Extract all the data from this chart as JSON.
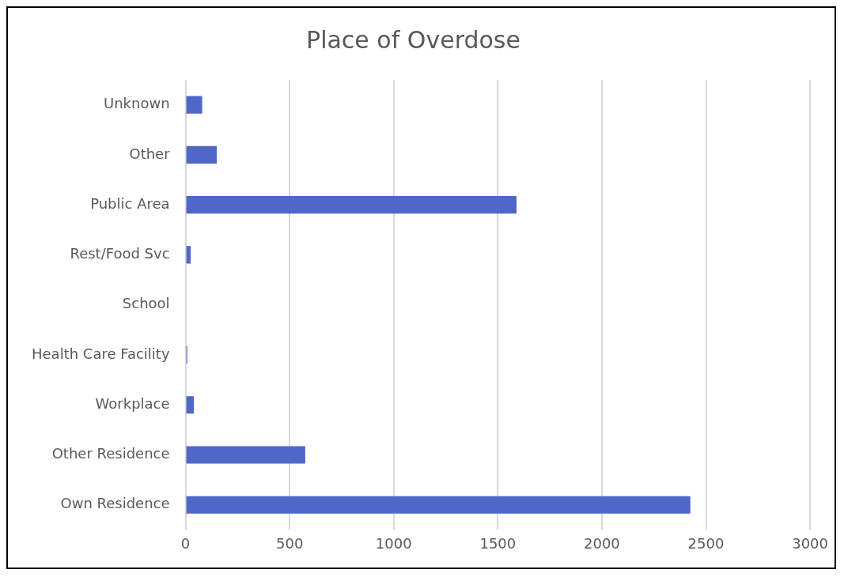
{
  "chart_data": {
    "type": "bar",
    "orientation": "horizontal",
    "title": "Place of Overdose",
    "categories": [
      "Unknown",
      "Other",
      "Public Area",
      "Rest/Food Svc",
      "School",
      "Health Care Facility",
      "Workplace",
      "Other Residence",
      "Own Residence"
    ],
    "values": [
      80,
      150,
      1590,
      25,
      0,
      8,
      40,
      575,
      2425
    ],
    "color": "#4f67c8",
    "xlim": [
      0,
      3000
    ],
    "xticks": [
      0,
      500,
      1000,
      1500,
      2000,
      2500,
      3000
    ],
    "grid": "x",
    "legend": false
  }
}
